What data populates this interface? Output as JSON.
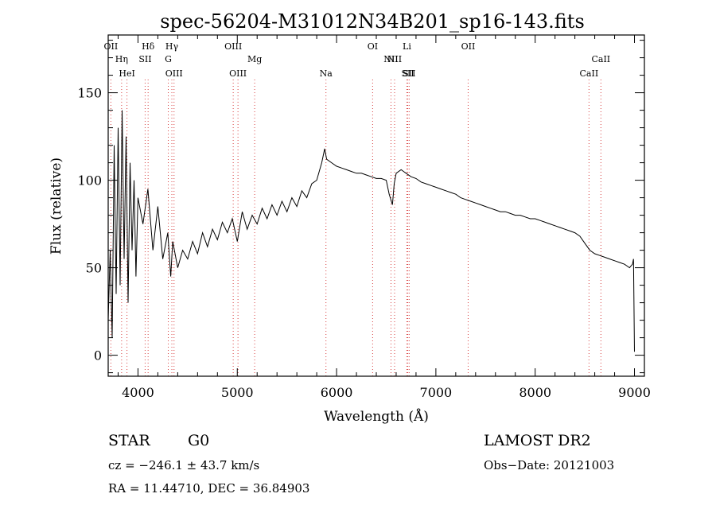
{
  "chart_data": {
    "type": "line",
    "title": "spec-56204-M31012N34B201_sp16-143.fits",
    "xlabel": "Wavelength (Å)",
    "ylabel": "Flux (relative)",
    "xlim": [
      3700,
      9100
    ],
    "ylim": [
      -12,
      183
    ],
    "x_ticks": [
      4000,
      5000,
      6000,
      7000,
      8000,
      9000
    ],
    "y_ticks": [
      0,
      50,
      100,
      150
    ],
    "grid": false,
    "series": [
      {
        "x": [
          3700,
          3720,
          3740,
          3760,
          3780,
          3800,
          3820,
          3840,
          3860,
          3880,
          3900,
          3920,
          3940,
          3960,
          3980,
          4000,
          4050,
          4100,
          4150,
          4200,
          4250,
          4300,
          4330,
          4350,
          4400,
          4450,
          4500,
          4550,
          4600,
          4650,
          4700,
          4750,
          4800,
          4850,
          4900,
          4950,
          5000,
          5050,
          5100,
          5150,
          5200,
          5250,
          5300,
          5350,
          5400,
          5450,
          5500,
          5550,
          5600,
          5650,
          5700,
          5750,
          5800,
          5850,
          5880,
          5900,
          5950,
          6000,
          6050,
          6100,
          6150,
          6200,
          6250,
          6300,
          6350,
          6400,
          6450,
          6500,
          6530,
          6563,
          6580,
          6600,
          6650,
          6700,
          6750,
          6800,
          6850,
          6900,
          6950,
          7000,
          7050,
          7100,
          7150,
          7200,
          7250,
          7300,
          7350,
          7400,
          7450,
          7500,
          7550,
          7600,
          7650,
          7700,
          7750,
          7800,
          7850,
          7900,
          7950,
          8000,
          8050,
          8100,
          8150,
          8200,
          8250,
          8300,
          8350,
          8400,
          8450,
          8500,
          8550,
          8600,
          8650,
          8700,
          8750,
          8800,
          8850,
          8900,
          8950,
          8980,
          8990,
          9000
        ],
        "y": [
          20,
          60,
          10,
          120,
          35,
          130,
          40,
          140,
          55,
          125,
          30,
          110,
          60,
          100,
          45,
          90,
          75,
          95,
          60,
          85,
          55,
          70,
          45,
          65,
          50,
          60,
          55,
          65,
          58,
          70,
          62,
          72,
          66,
          76,
          70,
          78,
          65,
          82,
          72,
          80,
          75,
          84,
          78,
          86,
          80,
          88,
          82,
          90,
          85,
          94,
          90,
          98,
          100,
          110,
          118,
          112,
          110,
          108,
          107,
          106,
          105,
          104,
          104,
          103,
          102,
          101,
          101,
          100,
          92,
          86,
          98,
          104,
          106,
          104,
          102,
          101,
          99,
          98,
          97,
          96,
          95,
          94,
          93,
          92,
          90,
          89,
          88,
          87,
          86,
          85,
          84,
          83,
          82,
          82,
          81,
          80,
          80,
          79,
          78,
          78,
          77,
          76,
          75,
          74,
          73,
          72,
          71,
          70,
          68,
          64,
          60,
          58,
          57,
          56,
          55,
          54,
          53,
          52,
          50,
          52,
          55,
          2
        ]
      }
    ],
    "lines": [
      {
        "label": "OII",
        "x": 3727
      },
      {
        "label": "Hη",
        "x": 3835
      },
      {
        "label": "HeI",
        "x": 3889
      },
      {
        "label": "Hδ",
        "x": 4102
      },
      {
        "label": "SII",
        "x": 4072
      },
      {
        "label": "OIII",
        "x": 4363
      },
      {
        "label": "Hγ",
        "x": 4341
      },
      {
        "label": "G",
        "x": 4305
      },
      {
        "label": "OIII",
        "x": 5007
      },
      {
        "label": "OIII",
        "x": 4959
      },
      {
        "label": "Mg",
        "x": 5175
      },
      {
        "label": "Na",
        "x": 5893
      },
      {
        "label": "OI",
        "x": 6363
      },
      {
        "label": "NII",
        "x": 6584
      },
      {
        "label": "SII",
        "x": 6717
      },
      {
        "label": "Li",
        "x": 6708
      },
      {
        "label": "NII",
        "x": 6548
      },
      {
        "label": "SII",
        "x": 6731
      },
      {
        "label": "OII",
        "x": 7325
      },
      {
        "label": "CaII",
        "x": 8662
      },
      {
        "label": "CaII",
        "x": 8542
      }
    ]
  },
  "info": {
    "class_label": "STAR",
    "subclass": "G0",
    "survey": "LAMOST DR2",
    "cz": "cz = −246.1 ± 43.7 km/s",
    "obs_date": "Obs−Date: 20121003",
    "radec": "RA =  11.44710, DEC =  36.84903"
  }
}
